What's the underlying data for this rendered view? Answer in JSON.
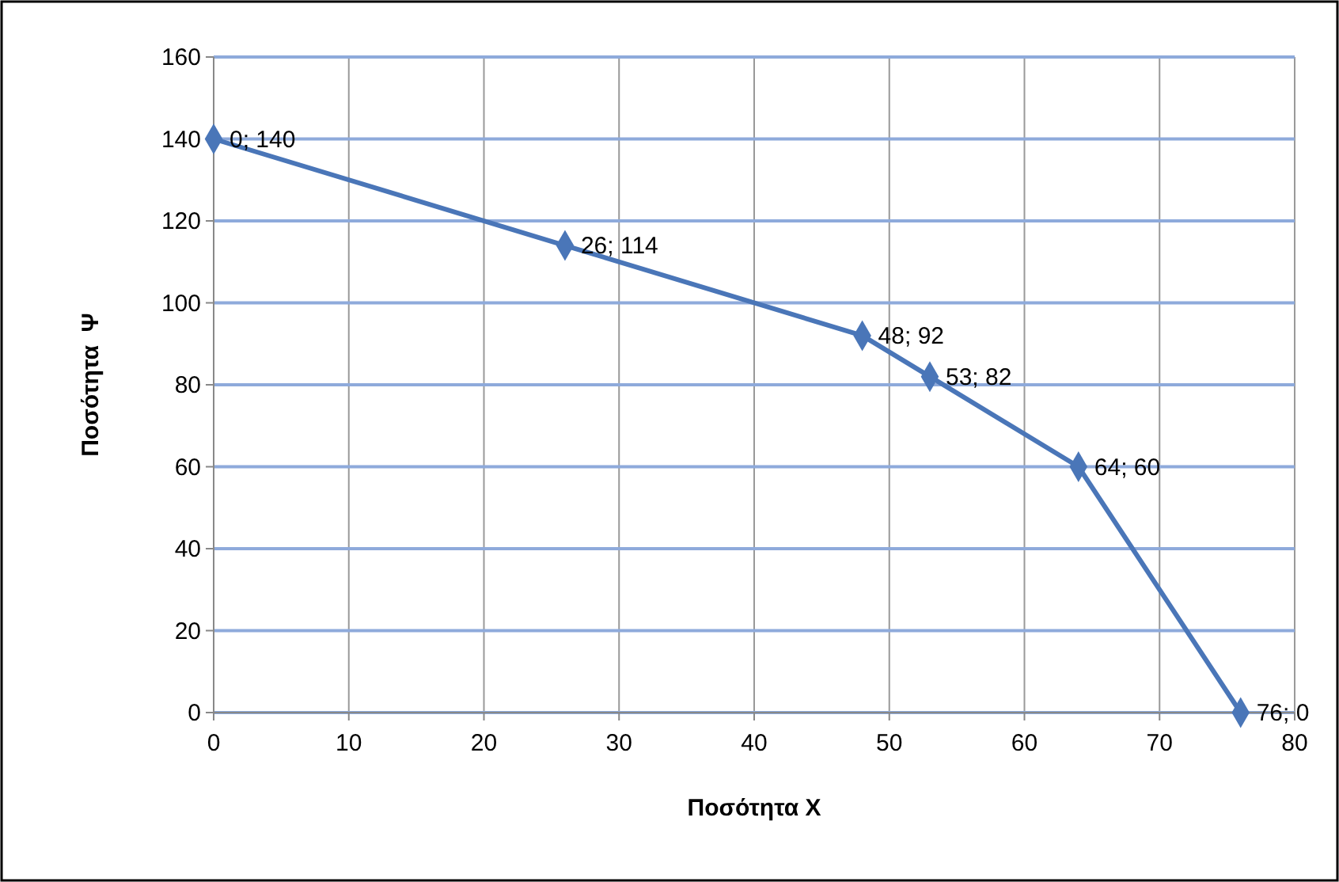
{
  "chart_data": {
    "type": "line",
    "xlabel": "Ποσότητα Χ",
    "ylabel": "Ποσότητα  Ψ",
    "x": [
      0,
      26,
      48,
      53,
      64,
      76
    ],
    "series": [
      {
        "color": "#4a76b8",
        "values": [
          140,
          114,
          92,
          82,
          60,
          0
        ],
        "value_labels": [
          "0; 140",
          "26; 114",
          "48; 92",
          "53; 82",
          "64; 60",
          "76; 0"
        ]
      }
    ],
    "xlim": [
      0,
      80
    ],
    "xticks": [
      0,
      10,
      20,
      30,
      40,
      50,
      60,
      70,
      80
    ],
    "ylim": [
      0,
      160
    ],
    "yticks": [
      0,
      20,
      40,
      60,
      80,
      100,
      120,
      140,
      160
    ],
    "grid": true,
    "marker": "diamond",
    "line_style": "solid"
  }
}
